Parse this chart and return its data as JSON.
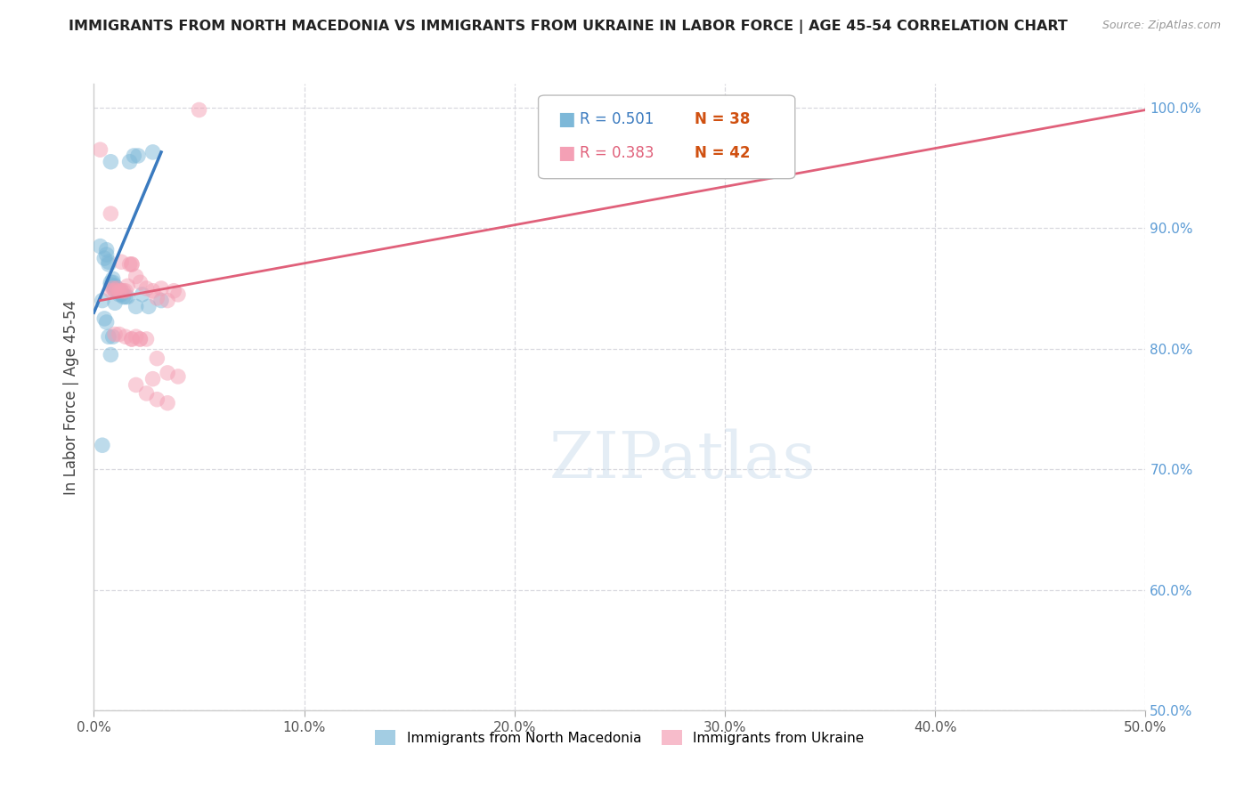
{
  "title": "IMMIGRANTS FROM NORTH MACEDONIA VS IMMIGRANTS FROM UKRAINE IN LABOR FORCE | AGE 45-54 CORRELATION CHART",
  "source": "Source: ZipAtlas.com",
  "ylabel": "In Labor Force | Age 45-54",
  "xlim": [
    0.0,
    0.5
  ],
  "ylim": [
    0.5,
    1.02
  ],
  "xticks": [
    0.0,
    0.1,
    0.2,
    0.3,
    0.4,
    0.5
  ],
  "xticklabels": [
    "0.0%",
    "10.0%",
    "20.0%",
    "30.0%",
    "40.0%",
    "50.0%"
  ],
  "yticks_right": [
    0.5,
    0.6,
    0.7,
    0.8,
    0.9,
    1.0
  ],
  "yticklabels_right": [
    "50.0%",
    "60.0%",
    "70.0%",
    "80.0%",
    "90.0%",
    "100.0%"
  ],
  "legend_R1": "0.501",
  "legend_N1": "38",
  "legend_R2": "0.383",
  "legend_N2": "42",
  "legend_label1": "Immigrants from North Macedonia",
  "legend_label2": "Immigrants from Ukraine",
  "mac_scatter_x": [
    0.008,
    0.017,
    0.019,
    0.021,
    0.028,
    0.003,
    0.005,
    0.006,
    0.006,
    0.007,
    0.007,
    0.008,
    0.008,
    0.009,
    0.009,
    0.01,
    0.01,
    0.011,
    0.011,
    0.012,
    0.012,
    0.013,
    0.013,
    0.014,
    0.015,
    0.016,
    0.004,
    0.005,
    0.006,
    0.007,
    0.008,
    0.009,
    0.01,
    0.02,
    0.023,
    0.026,
    0.032,
    0.004
  ],
  "mac_scatter_y": [
    0.955,
    0.955,
    0.96,
    0.96,
    0.963,
    0.885,
    0.875,
    0.878,
    0.882,
    0.87,
    0.872,
    0.853,
    0.855,
    0.855,
    0.858,
    0.848,
    0.852,
    0.848,
    0.85,
    0.845,
    0.848,
    0.845,
    0.848,
    0.843,
    0.843,
    0.843,
    0.84,
    0.825,
    0.822,
    0.81,
    0.795,
    0.81,
    0.838,
    0.835,
    0.845,
    0.835,
    0.84,
    0.72
  ],
  "ukr_scatter_x": [
    0.003,
    0.008,
    0.013,
    0.018,
    0.008,
    0.009,
    0.01,
    0.011,
    0.012,
    0.013,
    0.014,
    0.015,
    0.016,
    0.017,
    0.018,
    0.02,
    0.022,
    0.025,
    0.028,
    0.03,
    0.032,
    0.035,
    0.038,
    0.04,
    0.01,
    0.012,
    0.015,
    0.018,
    0.02,
    0.022,
    0.025,
    0.03,
    0.035,
    0.04,
    0.028,
    0.02,
    0.025,
    0.03,
    0.035,
    0.018,
    0.022,
    0.05
  ],
  "ukr_scatter_y": [
    0.965,
    0.912,
    0.872,
    0.87,
    0.848,
    0.85,
    0.848,
    0.85,
    0.848,
    0.848,
    0.848,
    0.848,
    0.852,
    0.87,
    0.87,
    0.86,
    0.855,
    0.85,
    0.848,
    0.842,
    0.85,
    0.84,
    0.848,
    0.845,
    0.812,
    0.812,
    0.81,
    0.808,
    0.81,
    0.808,
    0.808,
    0.792,
    0.78,
    0.777,
    0.775,
    0.77,
    0.763,
    0.758,
    0.755,
    0.808,
    0.808,
    0.998
  ],
  "mac_line_x": [
    0.0,
    0.032
  ],
  "mac_line_y": [
    0.83,
    0.963
  ],
  "ukr_line_x": [
    0.003,
    0.5
  ],
  "ukr_line_y": [
    0.84,
    0.998
  ],
  "watermark_text": "ZIPatlas",
  "mac_dot_color": "#7db8d8",
  "ukr_dot_color": "#f4a0b5",
  "mac_line_color": "#3a7abf",
  "ukr_line_color": "#e0607a",
  "right_tick_color": "#5b9bd5",
  "grid_color": "#d8d8df",
  "legend_R1_color": "#3a7abf",
  "legend_N1_color": "#d05010",
  "legend_R2_color": "#e0607a",
  "legend_N2_color": "#d05010"
}
